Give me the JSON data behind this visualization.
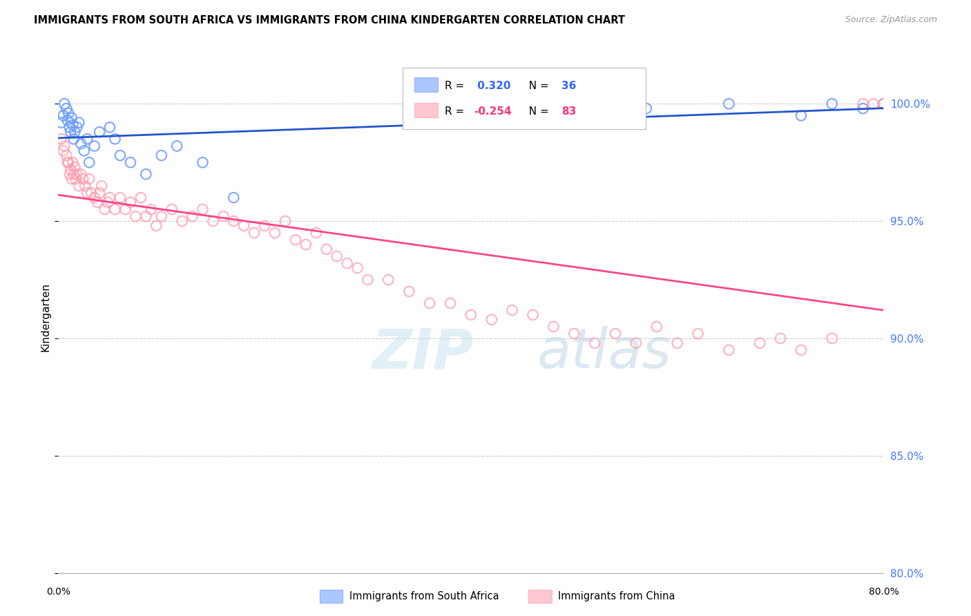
{
  "title": "IMMIGRANTS FROM SOUTH AFRICA VS IMMIGRANTS FROM CHINA KINDERGARTEN CORRELATION CHART",
  "source": "Source: ZipAtlas.com",
  "ylabel": "Kindergarten",
  "y_ticks": [
    80.0,
    85.0,
    90.0,
    95.0,
    100.0
  ],
  "x_min": 0.0,
  "x_max": 80.0,
  "y_min": 80.0,
  "y_max": 101.8,
  "blue_R": 0.32,
  "blue_N": 36,
  "pink_R": -0.254,
  "pink_N": 83,
  "legend_label_blue": "Immigrants from South Africa",
  "legend_label_pink": "Immigrants from China",
  "blue_color": "#6699ff",
  "pink_color": "#ff99aa",
  "blue_line_color": "#2255cc",
  "pink_line_color": "#ff4488",
  "watermark_zip": "ZIP",
  "watermark_atlas": "atlas",
  "blue_scatter_x": [
    0.3,
    0.5,
    0.6,
    0.8,
    0.9,
    1.0,
    1.1,
    1.2,
    1.3,
    1.4,
    1.5,
    1.6,
    1.8,
    2.0,
    2.2,
    2.5,
    2.8,
    3.0,
    3.5,
    4.0,
    5.0,
    5.5,
    6.0,
    7.0,
    8.5,
    10.0,
    11.5,
    14.0,
    17.0,
    48.0,
    57.0,
    65.0,
    72.0,
    75.0,
    78.0,
    80.0
  ],
  "blue_scatter_y": [
    99.2,
    99.5,
    100.0,
    99.8,
    99.3,
    99.6,
    99.0,
    98.8,
    99.4,
    99.1,
    98.5,
    98.8,
    99.0,
    99.2,
    98.3,
    98.0,
    98.5,
    97.5,
    98.2,
    98.8,
    99.0,
    98.5,
    97.8,
    97.5,
    97.0,
    97.8,
    98.2,
    97.5,
    96.0,
    100.0,
    99.8,
    100.0,
    99.5,
    100.0,
    99.8,
    100.0
  ],
  "pink_scatter_x": [
    0.3,
    0.5,
    0.6,
    0.8,
    0.9,
    1.0,
    1.1,
    1.2,
    1.3,
    1.4,
    1.5,
    1.6,
    1.7,
    1.8,
    2.0,
    2.2,
    2.4,
    2.6,
    2.8,
    3.0,
    3.2,
    3.5,
    3.8,
    4.0,
    4.2,
    4.5,
    4.8,
    5.0,
    5.5,
    6.0,
    6.5,
    7.0,
    7.5,
    8.0,
    8.5,
    9.0,
    9.5,
    10.0,
    11.0,
    12.0,
    13.0,
    14.0,
    15.0,
    16.0,
    17.0,
    18.0,
    19.0,
    20.0,
    21.0,
    22.0,
    23.0,
    24.0,
    25.0,
    26.0,
    27.0,
    28.0,
    29.0,
    30.0,
    32.0,
    34.0,
    36.0,
    38.0,
    40.0,
    42.0,
    44.0,
    46.0,
    48.0,
    50.0,
    52.0,
    54.0,
    56.0,
    58.0,
    60.0,
    62.0,
    65.0,
    68.0,
    70.0,
    72.0,
    75.0,
    78.0,
    79.0,
    80.0,
    80.0
  ],
  "pink_scatter_y": [
    98.5,
    98.0,
    98.2,
    97.8,
    97.5,
    97.5,
    97.0,
    97.2,
    96.8,
    97.5,
    97.0,
    97.3,
    96.8,
    97.0,
    96.5,
    97.0,
    96.8,
    96.5,
    96.2,
    96.8,
    96.2,
    96.0,
    95.8,
    96.2,
    96.5,
    95.5,
    95.8,
    96.0,
    95.5,
    96.0,
    95.5,
    95.8,
    95.2,
    96.0,
    95.2,
    95.5,
    94.8,
    95.2,
    95.5,
    95.0,
    95.2,
    95.5,
    95.0,
    95.2,
    95.0,
    94.8,
    94.5,
    94.8,
    94.5,
    95.0,
    94.2,
    94.0,
    94.5,
    93.8,
    93.5,
    93.2,
    93.0,
    92.5,
    92.5,
    92.0,
    91.5,
    91.5,
    91.0,
    90.8,
    91.2,
    91.0,
    90.5,
    90.2,
    89.8,
    90.2,
    89.8,
    90.5,
    89.8,
    90.2,
    89.5,
    89.8,
    90.0,
    89.5,
    90.0,
    100.0,
    100.0,
    100.0,
    100.0
  ]
}
